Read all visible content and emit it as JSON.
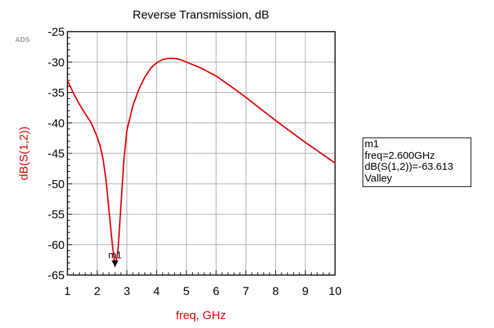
{
  "logo": "ADS",
  "chart_data": {
    "type": "line",
    "title": "Reverse Transmission, dB",
    "xlabel": "freq, GHz",
    "ylabel": "dB(S(1,2))",
    "xlim": [
      1,
      10
    ],
    "ylim": [
      -65,
      -25
    ],
    "xticks": [
      1,
      2,
      3,
      4,
      5,
      6,
      7,
      8,
      9,
      10
    ],
    "yticks": [
      -25,
      -30,
      -35,
      -40,
      -45,
      -50,
      -55,
      -60,
      -65
    ],
    "grid": true,
    "series": [
      {
        "color": "#e00000",
        "x": [
          1.0,
          1.2,
          1.4,
          1.6,
          1.8,
          2.0,
          2.1,
          2.2,
          2.3,
          2.4,
          2.5,
          2.6,
          2.7,
          2.8,
          2.9,
          3.0,
          3.2,
          3.4,
          3.6,
          3.8,
          4.0,
          4.2,
          4.4,
          4.6,
          4.8,
          5.0,
          5.5,
          6.0,
          6.5,
          7.0,
          7.5,
          8.0,
          8.5,
          9.0,
          9.5,
          10.0
        ],
        "y": [
          -33.0,
          -35.1,
          -36.9,
          -38.5,
          -40.0,
          -42.3,
          -43.8,
          -46.0,
          -49.5,
          -54.5,
          -59.5,
          -63.6,
          -61.0,
          -53.5,
          -46.0,
          -41.2,
          -37.2,
          -34.5,
          -32.5,
          -31.0,
          -30.1,
          -29.6,
          -29.4,
          -29.4,
          -29.6,
          -30.0,
          -31.0,
          -32.3,
          -34.0,
          -35.8,
          -37.7,
          -39.6,
          -41.4,
          -43.2,
          -44.9,
          -46.6
        ]
      }
    ],
    "marker": {
      "label": "m1",
      "x": 2.6,
      "y": -63.613,
      "readout": [
        "m1",
        "freq=2.600GHz",
        "dB(S(1,2))=-63.613",
        "Valley"
      ]
    }
  }
}
